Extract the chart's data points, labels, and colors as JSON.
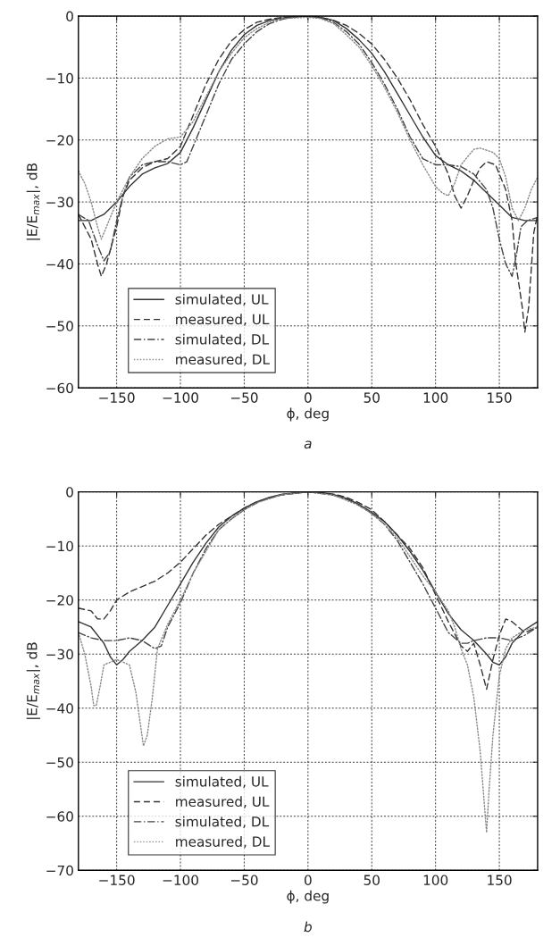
{
  "chart_data": [
    {
      "type": "line",
      "xlabel": "ϕ, deg",
      "ylabel": "|E/E$_{max}$|, dB",
      "annotations": [
        "a"
      ],
      "xlim": [
        -180,
        180
      ],
      "ylim": [
        -60,
        0
      ],
      "xticks": [
        -150,
        -100,
        -50,
        0,
        50,
        100,
        150
      ],
      "yticks": [
        -60,
        -50,
        -40,
        -30,
        -20,
        -10,
        0
      ],
      "grid": true,
      "legend": "bottom left",
      "series": [
        {
          "name": "simulated, UL",
          "color": "#333333",
          "line_style": "solid",
          "x": [
            -180,
            -170,
            -160,
            -150,
            -140,
            -130,
            -120,
            -110,
            -100,
            -90,
            -80,
            -70,
            -60,
            -50,
            -40,
            -30,
            -20,
            -10,
            0,
            10,
            20,
            30,
            40,
            50,
            60,
            70,
            80,
            90,
            100,
            110,
            120,
            130,
            140,
            150,
            160,
            170,
            180
          ],
          "values": [
            -33,
            -33,
            -32,
            -30,
            -27.5,
            -25.5,
            -24.5,
            -23.8,
            -22,
            -18,
            -13.5,
            -9,
            -5.5,
            -3,
            -1.5,
            -0.7,
            -0.3,
            -0.1,
            0,
            -0.2,
            -0.7,
            -2,
            -3.8,
            -6,
            -9,
            -12.5,
            -16,
            -19.5,
            -22.5,
            -24,
            -25,
            -26.5,
            -28.5,
            -30.5,
            -32.5,
            -33,
            -33
          ]
        },
        {
          "name": "measured, UL",
          "color": "#333333",
          "line_style": "dashed",
          "x": [
            -180,
            -170,
            -165,
            -162,
            -158,
            -150,
            -145,
            -140,
            -130,
            -120,
            -110,
            -100,
            -90,
            -80,
            -70,
            -60,
            -50,
            -40,
            -30,
            -20,
            0,
            10,
            20,
            30,
            40,
            50,
            60,
            70,
            80,
            90,
            100,
            110,
            115,
            120,
            125,
            130,
            135,
            140,
            147,
            155,
            160,
            163,
            168,
            170,
            173,
            177,
            180
          ],
          "values": [
            -32,
            -36,
            -40,
            -42,
            -40,
            -34,
            -29,
            -26.5,
            -24.5,
            -23.5,
            -23,
            -21,
            -16,
            -11,
            -7,
            -4,
            -2.2,
            -1,
            -0.5,
            -0.2,
            0,
            -0.2,
            -0.7,
            -1.5,
            -2.8,
            -4.5,
            -7,
            -10,
            -13.5,
            -17.5,
            -21,
            -25.5,
            -29,
            -31,
            -29,
            -26.5,
            -24.5,
            -23.5,
            -24,
            -28,
            -33,
            -40,
            -47,
            -51,
            -47,
            -35,
            -32
          ]
        },
        {
          "name": "simulated, DL",
          "color": "#444444",
          "line_style": "dashdot",
          "x": [
            -180,
            -172,
            -165,
            -160,
            -155,
            -150,
            -145,
            -140,
            -130,
            -120,
            -110,
            -100,
            -95,
            -90,
            -80,
            -70,
            -60,
            -50,
            -40,
            -30,
            -20,
            -10,
            0,
            10,
            20,
            30,
            40,
            50,
            60,
            70,
            80,
            90,
            100,
            110,
            120,
            130,
            140,
            145,
            150,
            155,
            160,
            163,
            167,
            172,
            180
          ],
          "values": [
            -32,
            -33,
            -37,
            -39.5,
            -38,
            -33,
            -29,
            -26,
            -24,
            -23.5,
            -23.5,
            -24,
            -23.5,
            -21,
            -16,
            -11,
            -7,
            -4.5,
            -2.5,
            -1.2,
            -0.5,
            -0.1,
            0,
            -0.3,
            -1,
            -2.5,
            -4.5,
            -7.5,
            -11,
            -15,
            -19.5,
            -23,
            -24,
            -24,
            -24.3,
            -25.5,
            -28,
            -31,
            -36,
            -40,
            -42,
            -39,
            -34,
            -33,
            -32.5
          ]
        },
        {
          "name": "measured, DL",
          "color": "#888888",
          "line_style": "dotted",
          "x": [
            -180,
            -175,
            -170,
            -165,
            -162,
            -158,
            -150,
            -140,
            -130,
            -120,
            -110,
            -100,
            -90,
            -80,
            -70,
            -60,
            -50,
            -40,
            -30,
            -20,
            0,
            10,
            20,
            30,
            40,
            50,
            60,
            70,
            80,
            90,
            100,
            105,
            110,
            115,
            120,
            130,
            135,
            145,
            150,
            155,
            160,
            165,
            170,
            175,
            180
          ],
          "values": [
            -25,
            -27,
            -30,
            -34,
            -36,
            -34,
            -30,
            -26,
            -23,
            -21,
            -19.8,
            -19.5,
            -17,
            -13,
            -9,
            -6,
            -3.5,
            -2,
            -1,
            -0.4,
            -0.2,
            -0.4,
            -1.2,
            -3,
            -5,
            -8,
            -11.5,
            -15.5,
            -20,
            -24,
            -27.5,
            -28.5,
            -29,
            -27,
            -24,
            -21.5,
            -21.3,
            -22,
            -23,
            -26,
            -31,
            -33,
            -31,
            -28,
            -26
          ]
        }
      ]
    },
    {
      "type": "line",
      "xlabel": "ϕ, deg",
      "ylabel": "|E/E$_{max}$|, dB",
      "annotations": [
        "b"
      ],
      "xlim": [
        -180,
        180
      ],
      "ylim": [
        -70,
        0
      ],
      "xticks": [
        -150,
        -100,
        -50,
        0,
        50,
        100,
        150
      ],
      "yticks": [
        -70,
        -60,
        -50,
        -40,
        -30,
        -20,
        -10,
        0
      ],
      "grid": true,
      "legend": "bottom left",
      "series": [
        {
          "name": "simulated, UL",
          "color": "#333333",
          "line_style": "solid",
          "x": [
            -180,
            -170,
            -160,
            -155,
            -150,
            -145,
            -140,
            -130,
            -120,
            -110,
            -100,
            -90,
            -80,
            -70,
            -60,
            -50,
            -40,
            -30,
            -20,
            0,
            10,
            20,
            30,
            40,
            50,
            60,
            70,
            80,
            90,
            100,
            110,
            120,
            130,
            140,
            145,
            150,
            155,
            160,
            170,
            180
          ],
          "values": [
            -24,
            -25,
            -28,
            -30.5,
            -32,
            -31,
            -29.5,
            -27.5,
            -25,
            -21,
            -17,
            -13,
            -9.5,
            -6.5,
            -4.5,
            -3,
            -1.8,
            -1,
            -0.4,
            0,
            -0.1,
            -0.5,
            -1.2,
            -2.3,
            -3.8,
            -5.5,
            -8,
            -11,
            -14.5,
            -18.5,
            -22.5,
            -25.5,
            -27.5,
            -30,
            -31.5,
            -32,
            -30.5,
            -28,
            -25.5,
            -24
          ]
        },
        {
          "name": "measured, UL",
          "color": "#333333",
          "line_style": "dashed",
          "x": [
            -180,
            -170,
            -165,
            -160,
            -155,
            -150,
            -140,
            -130,
            -120,
            -110,
            -100,
            -90,
            -80,
            -70,
            -60,
            -50,
            -40,
            -20,
            0,
            20,
            30,
            40,
            50,
            60,
            70,
            80,
            90,
            100,
            110,
            120,
            125,
            130,
            135,
            140,
            145,
            150,
            155,
            160,
            170,
            180
          ],
          "values": [
            -21.5,
            -22,
            -23.5,
            -23.5,
            -22,
            -20,
            -18.5,
            -17.5,
            -16.5,
            -15,
            -13,
            -10.5,
            -8,
            -6,
            -4.5,
            -3,
            -1.8,
            -0.5,
            0,
            -0.4,
            -1,
            -2,
            -3.3,
            -5.5,
            -8,
            -10.5,
            -14,
            -19,
            -24,
            -28.5,
            -29.5,
            -28,
            -32,
            -36.5,
            -31,
            -26.5,
            -23.5,
            -24,
            -26,
            -25
          ]
        },
        {
          "name": "simulated, DL",
          "color": "#444444",
          "line_style": "dashdot",
          "x": [
            -180,
            -170,
            -160,
            -150,
            -140,
            -130,
            -120,
            -115,
            -110,
            -100,
            -90,
            -80,
            -70,
            -60,
            -50,
            -40,
            -30,
            -20,
            0,
            20,
            30,
            40,
            50,
            60,
            70,
            80,
            90,
            100,
            110,
            120,
            125,
            130,
            140,
            150,
            160,
            170,
            180
          ],
          "values": [
            -26,
            -27,
            -27.5,
            -27.5,
            -27,
            -27.5,
            -29,
            -28.5,
            -25,
            -20.5,
            -15,
            -10.5,
            -7,
            -5,
            -3.3,
            -2,
            -1,
            -0.5,
            0,
            -0.6,
            -1.3,
            -2.5,
            -4,
            -6,
            -9,
            -13,
            -17,
            -21.5,
            -26,
            -28,
            -28,
            -27.5,
            -27,
            -27,
            -27.5,
            -26.5,
            -25
          ]
        },
        {
          "name": "measured, DL",
          "color": "#888888",
          "line_style": "dotted",
          "x": [
            -180,
            -175,
            -170,
            -168,
            -166,
            -163,
            -160,
            -150,
            -140,
            -135,
            -132,
            -129,
            -126,
            -122,
            -118,
            -110,
            -100,
            -90,
            -80,
            -70,
            -60,
            -50,
            -40,
            -20,
            0,
            20,
            40,
            50,
            60,
            70,
            80,
            90,
            100,
            110,
            115,
            120,
            125,
            130,
            135,
            138,
            140,
            142,
            145,
            150,
            155,
            160,
            170,
            180
          ],
          "values": [
            -26,
            -30,
            -36,
            -39.5,
            -39.5,
            -36,
            -32,
            -31,
            -32,
            -37,
            -42,
            -47,
            -45,
            -38,
            -29,
            -24.5,
            -20,
            -15,
            -11,
            -7,
            -5,
            -3.3,
            -2,
            -0.5,
            0,
            -0.6,
            -2.5,
            -4,
            -6,
            -8.5,
            -12,
            -15.5,
            -18.5,
            -22,
            -25,
            -29,
            -32,
            -38,
            -48,
            -57,
            -63,
            -55,
            -45,
            -34,
            -29,
            -27,
            -25.5,
            -25
          ]
        }
      ]
    }
  ]
}
